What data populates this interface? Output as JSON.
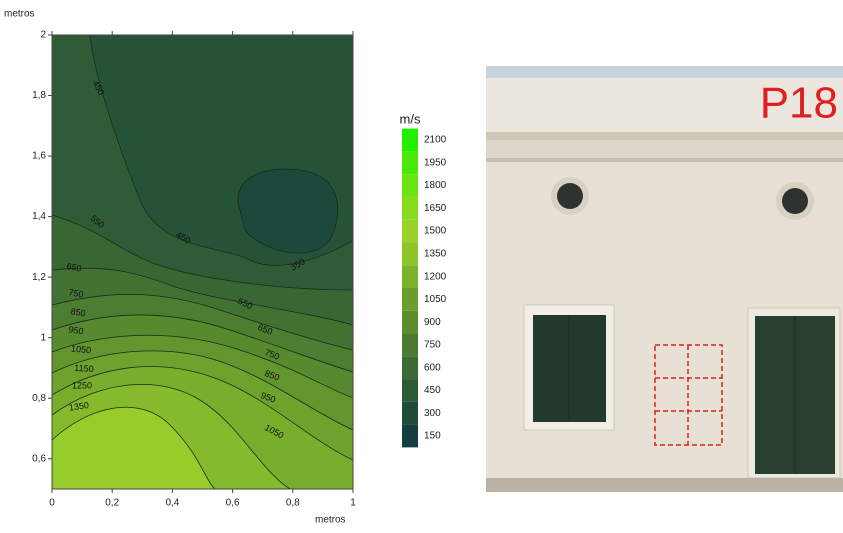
{
  "chart_data": {
    "type": "contour",
    "x_label": "metros",
    "y_label": "metros",
    "xlim": [
      0,
      1
    ],
    "ylim": [
      0.5,
      2
    ],
    "xticks": [
      0,
      {
        "value": 0.2,
        "label": "0,2"
      },
      {
        "value": 0.4,
        "label": "0,4"
      },
      {
        "value": 0.6,
        "label": "0,6"
      },
      {
        "value": 0.8,
        "label": "0,8"
      },
      1
    ],
    "yticks": [
      {
        "value": 0.6,
        "label": "0,6"
      },
      {
        "value": 0.8,
        "label": "0,8"
      },
      1,
      {
        "value": 1.2,
        "label": "1,2"
      },
      {
        "value": 1.4,
        "label": "1,4"
      },
      {
        "value": 1.6,
        "label": "1,6"
      },
      {
        "value": 1.8,
        "label": "1,8"
      },
      2
    ],
    "contour_levels": [
      350,
      450,
      550,
      650,
      750,
      850,
      950,
      1050,
      1150,
      1250,
      1350
    ],
    "contour_labels": [
      450,
      550,
      450,
      350,
      650,
      750,
      850,
      950,
      1050,
      1150,
      1250,
      1350,
      550,
      650,
      750,
      850,
      950,
      1050
    ],
    "colorbar": {
      "label": "m/s",
      "levels": [
        150,
        300,
        450,
        600,
        750,
        900,
        1050,
        1200,
        1350,
        1500,
        1650,
        1800,
        1950,
        2100
      ],
      "colors": [
        "#123f3f",
        "#1f4c3a",
        "#2d5a36",
        "#3b6a33",
        "#4a7b30",
        "#5a8d2e",
        "#6b9f2d",
        "#7db22c",
        "#8fc42b",
        "#9ad22a",
        "#86dc1e",
        "#6ae412",
        "#4aea08",
        "#22ee00"
      ]
    }
  },
  "photo": {
    "label": "P18"
  }
}
